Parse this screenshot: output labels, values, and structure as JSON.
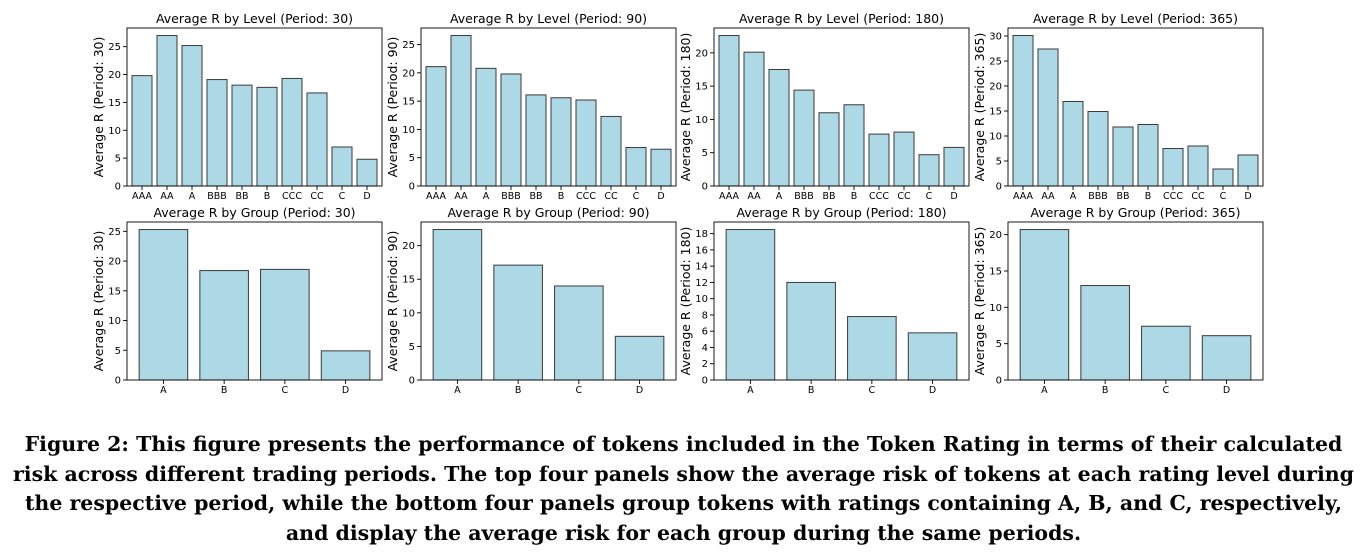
{
  "chart_data": [
    {
      "type": "bar",
      "title": "Average R by Level (Period: 30)",
      "ylabel": "Average R (Period: 30)",
      "categories": [
        "AAA",
        "AA",
        "A",
        "BBB",
        "BB",
        "B",
        "CCC",
        "CC",
        "C",
        "D"
      ],
      "values": [
        19.8,
        27.0,
        25.2,
        19.1,
        18.1,
        17.7,
        19.3,
        16.7,
        7.0,
        4.8
      ],
      "ylim": [
        0,
        28.35
      ],
      "yticks": [
        0,
        5,
        10,
        15,
        20,
        25
      ],
      "bar_color": "#add8e6"
    },
    {
      "type": "bar",
      "title": "Average R by Level (Period: 90)",
      "ylabel": "Average R (Period: 90)",
      "categories": [
        "AAA",
        "AA",
        "A",
        "BBB",
        "BB",
        "B",
        "CCC",
        "CC",
        "C",
        "D"
      ],
      "values": [
        21.1,
        26.6,
        20.8,
        19.8,
        16.1,
        15.6,
        15.2,
        12.3,
        6.8,
        6.5
      ],
      "ylim": [
        0,
        27.93
      ],
      "yticks": [
        0,
        5,
        10,
        15,
        20,
        25
      ],
      "bar_color": "#add8e6"
    },
    {
      "type": "bar",
      "title": "Average R by Level (Period: 180)",
      "ylabel": "Average R (Period: 180)",
      "categories": [
        "AAA",
        "AA",
        "A",
        "BBB",
        "BB",
        "B",
        "CCC",
        "CC",
        "C",
        "D"
      ],
      "values": [
        22.6,
        20.1,
        17.5,
        14.4,
        11.0,
        12.2,
        7.8,
        8.1,
        4.7,
        5.8
      ],
      "ylim": [
        0,
        23.73
      ],
      "yticks": [
        0,
        5,
        10,
        15,
        20
      ],
      "bar_color": "#add8e6"
    },
    {
      "type": "bar",
      "title": "Average R by Level (Period: 365)",
      "ylabel": "Average R (Period: 365)",
      "categories": [
        "AAA",
        "AA",
        "A",
        "BBB",
        "BB",
        "B",
        "CCC",
        "CC",
        "C",
        "D"
      ],
      "values": [
        30.1,
        27.4,
        16.9,
        14.9,
        11.8,
        12.3,
        7.5,
        8.0,
        3.4,
        6.2
      ],
      "ylim": [
        0,
        31.6
      ],
      "yticks": [
        0,
        5,
        10,
        15,
        20,
        25,
        30
      ],
      "bar_color": "#add8e6"
    },
    {
      "type": "bar",
      "title": "Average R by Group (Period: 30)",
      "ylabel": "Average R (Period: 30)",
      "categories": [
        "A",
        "B",
        "C",
        "D"
      ],
      "values": [
        25.3,
        18.4,
        18.6,
        4.9
      ],
      "ylim": [
        0,
        26.57
      ],
      "yticks": [
        0,
        5,
        10,
        15,
        20,
        25
      ],
      "bar_color": "#add8e6"
    },
    {
      "type": "bar",
      "title": "Average R by Group (Period: 90)",
      "ylabel": "Average R (Period: 90)",
      "categories": [
        "A",
        "B",
        "C",
        "D"
      ],
      "values": [
        22.4,
        17.1,
        14.0,
        6.5
      ],
      "ylim": [
        0,
        23.52
      ],
      "yticks": [
        0,
        5,
        10,
        15,
        20
      ],
      "bar_color": "#add8e6"
    },
    {
      "type": "bar",
      "title": "Average R by Group (Period: 180)",
      "ylabel": "Average R (Period: 180)",
      "categories": [
        "A",
        "B",
        "C",
        "D"
      ],
      "values": [
        18.5,
        12.0,
        7.8,
        5.8
      ],
      "ylim": [
        0,
        19.43
      ],
      "yticks": [
        0,
        2,
        4,
        6,
        8,
        10,
        12,
        14,
        16,
        18
      ],
      "bar_color": "#add8e6"
    },
    {
      "type": "bar",
      "title": "Average R by Group (Period: 365)",
      "ylabel": "Average R (Period: 365)",
      "categories": [
        "A",
        "B",
        "C",
        "D"
      ],
      "values": [
        20.7,
        13.0,
        7.4,
        6.1
      ],
      "ylim": [
        0,
        21.74
      ],
      "yticks": [
        0,
        5,
        10,
        15,
        20
      ],
      "bar_color": "#add8e6"
    }
  ],
  "caption": "Figure 2: This figure presents the performance of tokens included in the Token Rating in terms of their calculated risk across different trading periods. The top four panels show the average risk of tokens at each rating level during the respective period, while the bottom four panels group tokens with ratings containing A, B, and C, respectively, and display the average risk for each group during the same periods."
}
